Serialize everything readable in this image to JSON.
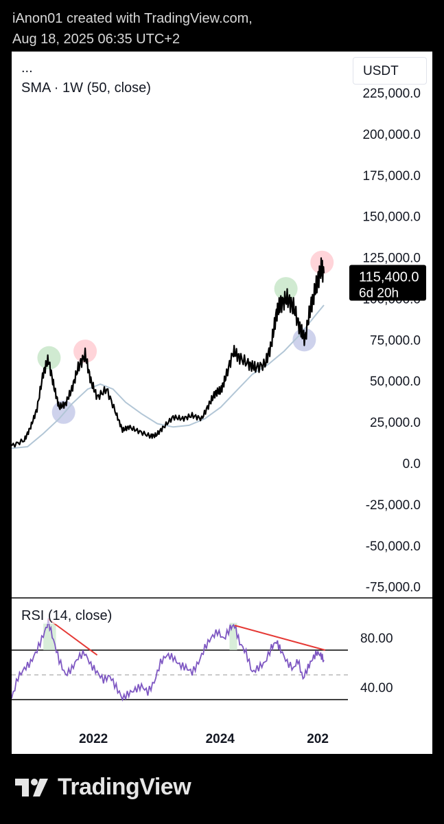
{
  "header": {
    "line1": "iAnon01 created with TradingView.com,",
    "line2": "Aug 18, 2025 06:35 UTC+2"
  },
  "chart": {
    "legend_dots": "...",
    "legend_sma": "SMA · 1W (50, close)",
    "currency": "USDT",
    "price_badge": {
      "price": "115,400.0",
      "countdown": "6d 20h"
    }
  },
  "rsi": {
    "legend": "RSI (14, close)"
  },
  "footer": {
    "brand": "TradingView"
  },
  "colors": {
    "price": "#000000",
    "sma": "#b2c6d6",
    "rsi": "#7e57c2",
    "trendline": "#e53935",
    "circle_green": "#c8e6c9",
    "circle_red": "#ffcdd2",
    "circle_blue": "#c5cae9"
  },
  "chart_data": [
    {
      "type": "line",
      "title": "SMA · 1W (50, close)",
      "ylim": [
        -75000,
        225000
      ],
      "y_ticks": [
        "225,000.0",
        "200,000.0",
        "175,000.0",
        "150,000.0",
        "125,000.0",
        "100,000.0",
        "75,000.0",
        "50,000.0",
        "25,000.0",
        "0.0",
        "-25,000.0",
        "-50,000.0",
        "-75,000.0"
      ],
      "x_ticks": [
        "2022",
        "2024",
        "202"
      ],
      "current_price": 115400,
      "series": [
        {
          "name": "",
          "x": [
            2020.7,
            2020.9,
            2021.0,
            2021.1,
            2021.2,
            2021.28,
            2021.37,
            2021.45,
            2021.55,
            2021.65,
            2021.75,
            2021.86,
            2021.95,
            2022.05,
            2022.2,
            2022.35,
            2022.45,
            2022.55,
            2022.7,
            2022.88,
            2022.98,
            2023.1,
            2023.25,
            2023.4,
            2023.55,
            2023.7,
            2023.82,
            2023.92,
            2024.0,
            2024.08,
            2024.2,
            2024.3,
            2024.45,
            2024.55,
            2024.7,
            2024.8,
            2024.88,
            2024.95,
            2025.05,
            2025.15,
            2025.25,
            2025.33,
            2025.42,
            2025.5,
            2025.58,
            2025.63
          ],
          "values": [
            10500,
            14000,
            22000,
            33000,
            55000,
            63000,
            46000,
            34000,
            36000,
            45000,
            58000,
            66000,
            50000,
            40000,
            45000,
            30000,
            20000,
            22000,
            19500,
            16500,
            17000,
            22000,
            28000,
            27000,
            29000,
            27000,
            36000,
            43000,
            44000,
            52000,
            68000,
            64000,
            60000,
            58000,
            60000,
            72000,
            91000,
            97000,
            100000,
            95000,
            82000,
            75000,
            95000,
            106000,
            118000,
            115400
          ]
        },
        {
          "name": "",
          "x": [
            2020.7,
            2020.95,
            2021.2,
            2021.45,
            2021.65,
            2021.9,
            2022.1,
            2022.3,
            2022.5,
            2022.75,
            2023.0,
            2023.25,
            2023.5,
            2023.75,
            2024.0,
            2024.25,
            2024.5,
            2024.75,
            2025.0,
            2025.25,
            2025.5,
            2025.63
          ],
          "values": [
            9000,
            10000,
            18000,
            27000,
            36000,
            45000,
            48000,
            45000,
            37000,
            30000,
            24000,
            22000,
            23000,
            27000,
            34000,
            44000,
            54000,
            60000,
            68000,
            78000,
            90000,
            96000
          ]
        }
      ],
      "annotations": [
        {
          "label": "",
          "color": "green",
          "x": 2021.29,
          "y": 64000
        },
        {
          "label": "",
          "color": "red",
          "x": 2021.86,
          "y": 68000
        },
        {
          "label": "",
          "color": "blue",
          "x": 2021.52,
          "y": 31000
        },
        {
          "label": "",
          "color": "green",
          "x": 2025.03,
          "y": 106000
        },
        {
          "label": "",
          "color": "red",
          "x": 2025.6,
          "y": 122000
        },
        {
          "label": "",
          "color": "blue",
          "x": 2025.32,
          "y": 75000
        }
      ]
    },
    {
      "type": "line",
      "title": "RSI (14, close)",
      "ylim": [
        20,
        100
      ],
      "y_ticks": [
        "80.00",
        "40.00"
      ],
      "bands": [
        30,
        50,
        70
      ],
      "x_ticks": [
        "2022",
        "2024",
        "202"
      ],
      "series": [
        {
          "name": "",
          "x": [
            2020.7,
            2020.8,
            2020.9,
            2021.0,
            2021.1,
            2021.2,
            2021.28,
            2021.36,
            2021.45,
            2021.55,
            2021.65,
            2021.75,
            2021.85,
            2021.95,
            2022.05,
            2022.15,
            2022.25,
            2022.35,
            2022.45,
            2022.55,
            2022.65,
            2022.75,
            2022.85,
            2022.95,
            2023.05,
            2023.15,
            2023.25,
            2023.35,
            2023.45,
            2023.55,
            2023.65,
            2023.75,
            2023.85,
            2023.95,
            2024.05,
            2024.15,
            2024.22,
            2024.3,
            2024.4,
            2024.5,
            2024.6,
            2024.7,
            2024.8,
            2024.88,
            2024.95,
            2025.05,
            2025.15,
            2025.22,
            2025.3,
            2025.38,
            2025.45,
            2025.52,
            2025.58,
            2025.63
          ],
          "values": [
            31,
            48,
            55,
            60,
            70,
            82,
            93,
            78,
            62,
            50,
            55,
            64,
            68,
            58,
            52,
            46,
            49,
            40,
            31,
            35,
            38,
            41,
            36,
            44,
            60,
            66,
            64,
            58,
            56,
            52,
            60,
            72,
            80,
            85,
            79,
            88,
            90,
            76,
            68,
            52,
            56,
            60,
            72,
            77,
            70,
            60,
            55,
            62,
            47,
            56,
            63,
            68,
            66,
            62
          ]
        }
      ],
      "trendlines": [
        {
          "from": [
            2021.28,
            95
          ],
          "to": [
            2022.05,
            66
          ]
        },
        {
          "from": [
            2024.22,
            90
          ],
          "to": [
            2025.65,
            70
          ]
        }
      ]
    }
  ]
}
